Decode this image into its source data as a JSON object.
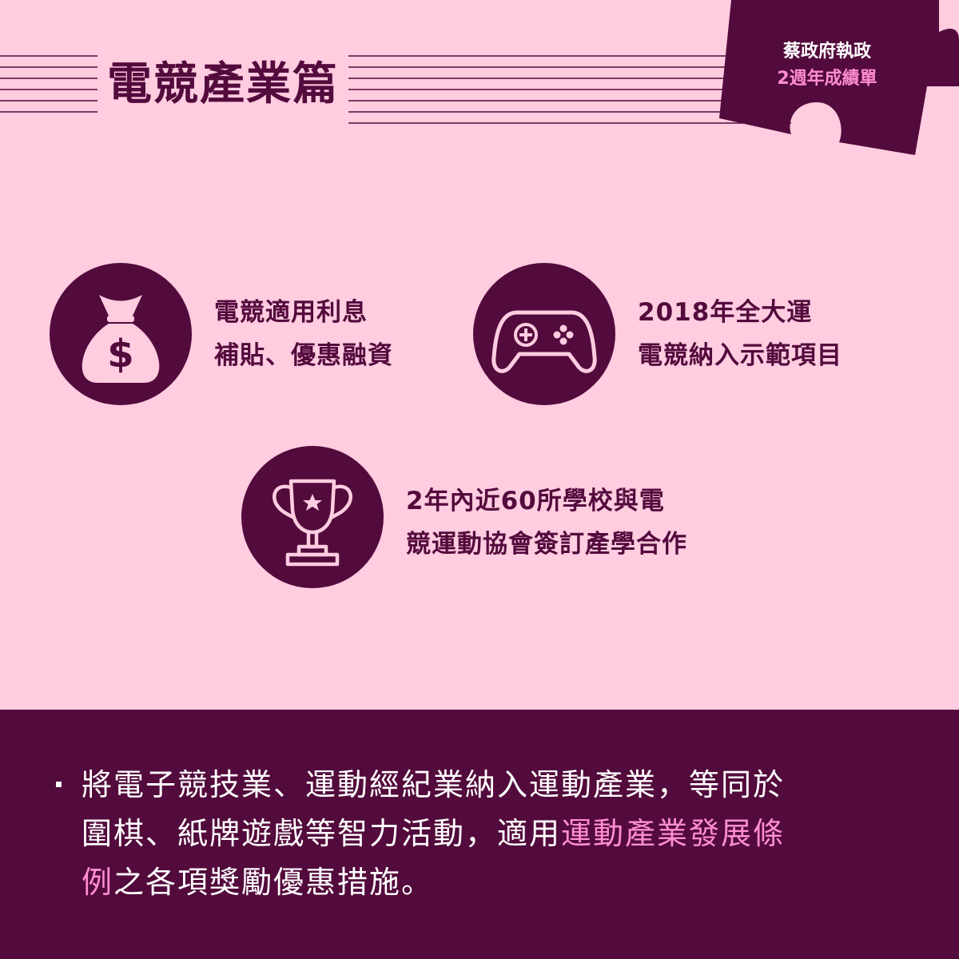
{
  "header": {
    "title": "電競產業篇",
    "badge_line1": "蔡政府執政",
    "badge_line2": "2週年成績單"
  },
  "features": [
    {
      "icon": "money-bag-icon",
      "line1": "電競適用利息",
      "line2": "補貼、優惠融資"
    },
    {
      "icon": "gamepad-icon",
      "line1": "2018年全大運",
      "line2": "電競納入示範項目"
    },
    {
      "icon": "trophy-icon",
      "line1": "2年內近60所學校與電",
      "line2": "競運動協會簽訂產學合作"
    }
  ],
  "body": {
    "line1": "將電子競技業、運動經紀業納入運動產業，等同於",
    "line2_a": "圍棋、紙牌遊戲等智力活動，適用",
    "line2_b": "運動產業發展條",
    "line3_a": "例",
    "line3_b": "之各項獎勵優惠措施。"
  },
  "colors": {
    "background": "#ffcce0",
    "primary": "#530a3c",
    "accent": "#ff8ed0",
    "text_light": "#ffffff"
  }
}
